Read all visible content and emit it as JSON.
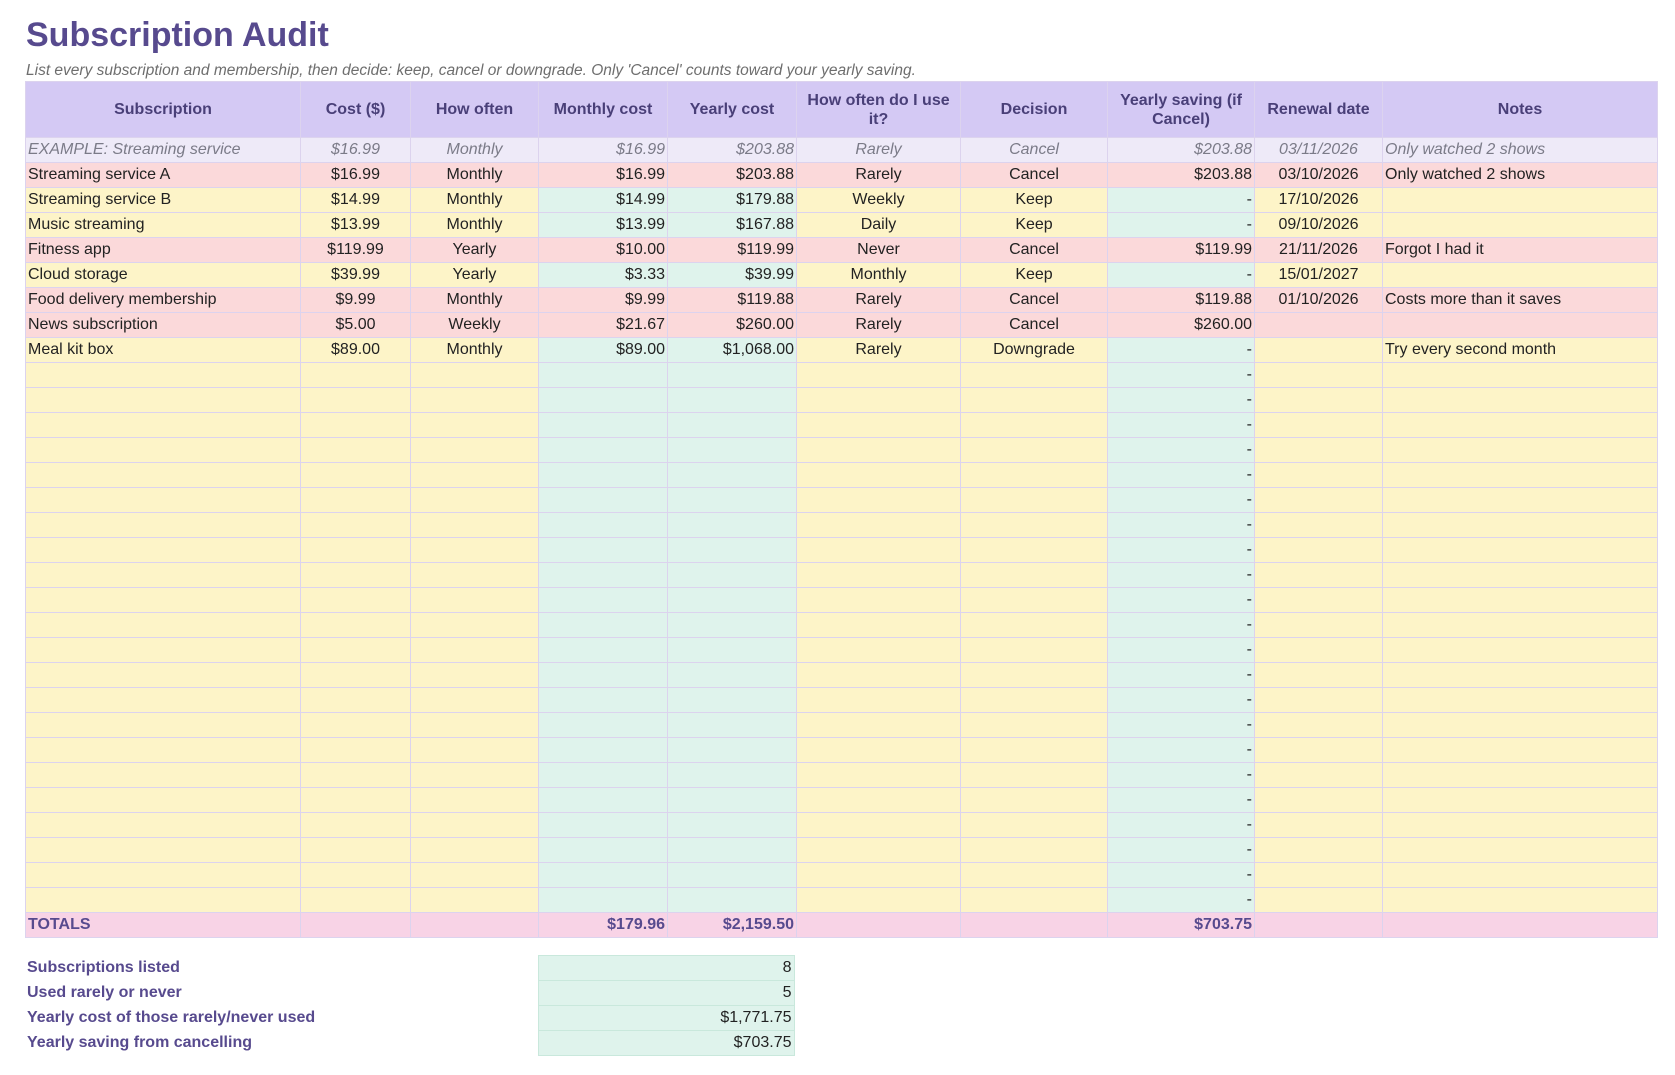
{
  "title": "Subscription Audit",
  "subtitle": "List every subscription and membership, then decide: keep, cancel or downgrade. Only 'Cancel' counts toward your yearly saving.",
  "headers": {
    "subscription": "Subscription",
    "cost": "Cost ($)",
    "how_often": "How often",
    "monthly_cost": "Monthly cost",
    "yearly_cost": "Yearly cost",
    "usage": "How often do I use it?",
    "decision": "Decision",
    "yearly_saving": "Yearly saving (if Cancel)",
    "renewal_date": "Renewal date",
    "notes": "Notes"
  },
  "example": {
    "name": "EXAMPLE: Streaming service",
    "cost": "$16.99",
    "freq": "Monthly",
    "monthly": "$16.99",
    "yearly": "$203.88",
    "usage": "Rarely",
    "decision": "Cancel",
    "saving": "$203.88",
    "renewal": "03/11/2026",
    "notes": "Only watched 2 shows"
  },
  "rows": [
    {
      "name": "Streaming service A",
      "cost": "$16.99",
      "freq": "Monthly",
      "monthly": "$16.99",
      "yearly": "$203.88",
      "usage": "Rarely",
      "decision": "Cancel",
      "saving": "$203.88",
      "renewal": "03/10/2026",
      "notes": "Only watched 2 shows"
    },
    {
      "name": "Streaming service B",
      "cost": "$14.99",
      "freq": "Monthly",
      "monthly": "$14.99",
      "yearly": "$179.88",
      "usage": "Weekly",
      "decision": "Keep",
      "saving": "-",
      "renewal": "17/10/2026",
      "notes": ""
    },
    {
      "name": "Music streaming",
      "cost": "$13.99",
      "freq": "Monthly",
      "monthly": "$13.99",
      "yearly": "$167.88",
      "usage": "Daily",
      "decision": "Keep",
      "saving": "-",
      "renewal": "09/10/2026",
      "notes": ""
    },
    {
      "name": "Fitness app",
      "cost": "$119.99",
      "freq": "Yearly",
      "monthly": "$10.00",
      "yearly": "$119.99",
      "usage": "Never",
      "decision": "Cancel",
      "saving": "$119.99",
      "renewal": "21/11/2026",
      "notes": "Forgot I had it"
    },
    {
      "name": "Cloud storage",
      "cost": "$39.99",
      "freq": "Yearly",
      "monthly": "$3.33",
      "yearly": "$39.99",
      "usage": "Monthly",
      "decision": "Keep",
      "saving": "-",
      "renewal": "15/01/2027",
      "notes": ""
    },
    {
      "name": "Food delivery membership",
      "cost": "$9.99",
      "freq": "Monthly",
      "monthly": "$9.99",
      "yearly": "$119.88",
      "usage": "Rarely",
      "decision": "Cancel",
      "saving": "$119.88",
      "renewal": "01/10/2026",
      "notes": "Costs more than it saves"
    },
    {
      "name": "News subscription",
      "cost": "$5.00",
      "freq": "Weekly",
      "monthly": "$21.67",
      "yearly": "$260.00",
      "usage": "Rarely",
      "decision": "Cancel",
      "saving": "$260.00",
      "renewal": "",
      "notes": ""
    },
    {
      "name": "Meal kit box",
      "cost": "$89.00",
      "freq": "Monthly",
      "monthly": "$89.00",
      "yearly": "$1,068.00",
      "usage": "Rarely",
      "decision": "Downgrade",
      "saving": "-",
      "renewal": "",
      "notes": "Try every second month"
    }
  ],
  "empty_saving_placeholder": "-",
  "empty_row_count": 22,
  "totals": {
    "label": "TOTALS",
    "monthly": "$179.96",
    "yearly": "$2,159.50",
    "saving": "$703.75"
  },
  "summary": [
    {
      "label": "Subscriptions listed",
      "value": "8"
    },
    {
      "label": "Used rarely or never",
      "value": "5"
    },
    {
      "label": "Yearly cost of those rarely/never used",
      "value": "$1,771.75"
    },
    {
      "label": "Yearly saving from cancelling",
      "value": "$703.75"
    }
  ],
  "colors": {
    "title": "#574a8e",
    "header_bg": "#d4c9f4",
    "cancel_row": "#fbd9da",
    "keep_row": "#fdf4c8",
    "calc_cell": "#dff3ec",
    "totals_row": "#f8d3e6",
    "example_row": "#eeeaf8"
  }
}
